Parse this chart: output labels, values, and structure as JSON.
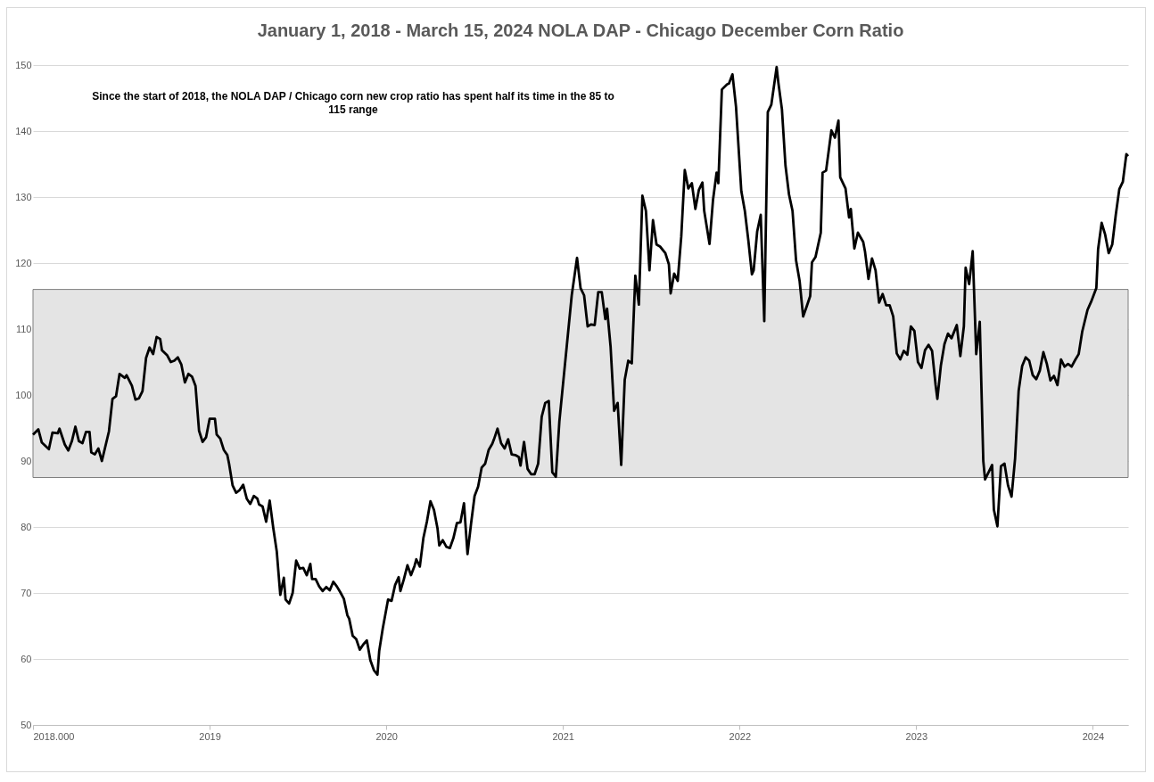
{
  "chart_data": {
    "type": "line",
    "title": "January 1, 2018 - March 15, 2024 NOLA DAP - Chicago December Corn Ratio",
    "annotations": [
      "Since the start of 2018, the NOLA DAP / Chicago corn new crop ratio has spent half its time in the 85 to 115 range"
    ],
    "x": [
      2018.0,
      2018.03,
      2018.05,
      2018.09,
      2018.11,
      2018.14,
      2018.15,
      2018.18,
      2018.2,
      2018.22,
      2018.24,
      2018.26,
      2018.28,
      2018.3,
      2018.32,
      2018.33,
      2018.35,
      2018.37,
      2018.39,
      2018.43,
      2018.45,
      2018.47,
      2018.49,
      2018.52,
      2018.53,
      2018.56,
      2018.58,
      2018.6,
      2018.62,
      2018.64,
      2018.66,
      2018.68,
      2018.7,
      2018.72,
      2018.73,
      2018.76,
      2018.78,
      2018.8,
      2018.82,
      2018.84,
      2018.86,
      2018.88,
      2018.9,
      2018.92,
      2018.94,
      2018.96,
      2018.98,
      2019.0,
      2019.03,
      2019.04,
      2019.06,
      2019.08,
      2019.1,
      2019.11,
      2019.13,
      2019.15,
      2019.17,
      2019.19,
      2019.21,
      2019.23,
      2019.25,
      2019.27,
      2019.28,
      2019.3,
      2019.32,
      2019.34,
      2019.36,
      2019.38,
      2019.4,
      2019.42,
      2019.43,
      2019.45,
      2019.47,
      2019.49,
      2019.51,
      2019.53,
      2019.55,
      2019.57,
      2019.58,
      2019.6,
      2019.62,
      2019.64,
      2019.66,
      2019.68,
      2019.7,
      2019.72,
      2019.74,
      2019.76,
      2019.78,
      2019.79,
      2019.81,
      2019.83,
      2019.85,
      2019.87,
      2019.89,
      2019.91,
      2019.93,
      2019.95,
      2019.96,
      2019.98,
      2020.01,
      2020.03,
      2020.05,
      2020.07,
      2020.08,
      2020.1,
      2020.12,
      2020.14,
      2020.16,
      2020.17,
      2020.19,
      2020.21,
      2020.23,
      2020.25,
      2020.27,
      2020.29,
      2020.3,
      2020.32,
      2020.34,
      2020.36,
      2020.38,
      2020.4,
      2020.42,
      2020.44,
      2020.46,
      2020.48,
      2020.5,
      2020.52,
      2020.54,
      2020.56,
      2020.58,
      2020.6,
      2020.61,
      2020.63,
      2020.65,
      2020.67,
      2020.69,
      2020.71,
      2020.73,
      2020.75,
      2020.76,
      2020.78,
      2020.8,
      2020.82,
      2020.84,
      2020.86,
      2020.88,
      2020.9,
      2020.92,
      2020.94,
      2020.96,
      2020.98,
      2021.05,
      2021.08,
      2021.1,
      2021.12,
      2021.14,
      2021.16,
      2021.18,
      2021.2,
      2021.22,
      2021.24,
      2021.25,
      2021.27,
      2021.29,
      2021.31,
      2021.33,
      2021.35,
      2021.37,
      2021.39,
      2021.41,
      2021.43,
      2021.45,
      2021.47,
      2021.49,
      2021.51,
      2021.53,
      2021.55,
      2021.58,
      2021.6,
      2021.61,
      2021.63,
      2021.65,
      2021.67,
      2021.69,
      2021.71,
      2021.73,
      2021.75,
      2021.77,
      2021.79,
      2021.8,
      2021.83,
      2021.85,
      2021.87,
      2021.88,
      2021.9,
      2021.93,
      2021.94,
      2021.96,
      2021.98,
      2022.01,
      2022.03,
      2022.05,
      2022.07,
      2022.08,
      2022.1,
      2022.12,
      2022.14,
      2022.16,
      2022.18,
      2022.21,
      2022.22,
      2022.24,
      2022.26,
      2022.28,
      2022.3,
      2022.32,
      2022.34,
      2022.36,
      2022.38,
      2022.4,
      2022.41,
      2022.43,
      2022.46,
      2022.47,
      2022.49,
      2022.52,
      2022.54,
      2022.56,
      2022.57,
      2022.6,
      2022.62,
      2022.63,
      2022.65,
      2022.67,
      2022.7,
      2022.71,
      2022.73,
      2022.75,
      2022.77,
      2022.79,
      2022.81,
      2022.83,
      2022.85,
      2022.87,
      2022.89,
      2022.91,
      2022.93,
      2022.95,
      2022.97,
      2022.99,
      2023.01,
      2023.03,
      2023.05,
      2023.07,
      2023.09,
      2023.11,
      2023.12,
      2023.14,
      2023.16,
      2023.18,
      2023.2,
      2023.23,
      2023.25,
      2023.27,
      2023.28,
      2023.3,
      2023.32,
      2023.34,
      2023.36,
      2023.38,
      2023.39,
      2023.41,
      2023.43,
      2023.44,
      2023.46,
      2023.48,
      2023.5,
      2023.52,
      2023.54,
      2023.56,
      2023.58,
      2023.6,
      2023.62,
      2023.64,
      2023.66,
      2023.68,
      2023.7,
      2023.72,
      2023.74,
      2023.76,
      2023.78,
      2023.8,
      2023.82,
      2023.84,
      2023.86,
      2023.88,
      2023.9,
      2023.92,
      2023.94,
      2023.97,
      2023.99,
      2024.02,
      2024.03,
      2024.05,
      2024.07,
      2024.09,
      2024.11,
      2024.13,
      2024.15,
      2024.17,
      2024.19,
      2024.2
    ],
    "series": [
      {
        "color": "#000000",
        "values": [
          94,
          94.8,
          92.8,
          91.8,
          94.3,
          94.2,
          94.9,
          92.5,
          91.6,
          93,
          95.2,
          93,
          92.7,
          94.4,
          94.4,
          91.3,
          91,
          91.9,
          90,
          94.5,
          99.4,
          99.8,
          103.2,
          102.6,
          103,
          101.4,
          99.3,
          99.5,
          100.6,
          105.6,
          107.2,
          106.2,
          108.8,
          108.5,
          106.8,
          106,
          105,
          105.2,
          105.7,
          104.6,
          101.9,
          103.2,
          102.8,
          101.4,
          94.6,
          92.9,
          93.6,
          96.4,
          96.4,
          94,
          93.4,
          91.7,
          90.9,
          89.6,
          86.3,
          85.2,
          85.6,
          86.4,
          84.3,
          83.5,
          84.7,
          84.3,
          83.4,
          83.1,
          80.8,
          84,
          79.9,
          76.3,
          69.7,
          72.3,
          69,
          68.4,
          70,
          74.9,
          73.7,
          73.8,
          72.7,
          74.4,
          72.1,
          72.1,
          71,
          70.3,
          70.9,
          70.4,
          71.7,
          71,
          70.1,
          69.1,
          66.6,
          66.1,
          63.5,
          63,
          61.4,
          62.2,
          62.8,
          59.8,
          58.3,
          57.6,
          61.2,
          64.6,
          69,
          68.8,
          71.2,
          72.4,
          70.3,
          72.1,
          74.2,
          72.7,
          74.1,
          75.1,
          74,
          78.3,
          80.8,
          83.9,
          82.6,
          79.8,
          77.2,
          78,
          77,
          76.8,
          78.3,
          80.6,
          80.7,
          83.6,
          75.9,
          80.5,
          84.7,
          86.1,
          89,
          89.6,
          91.7,
          92.6,
          93.3,
          94.9,
          92.7,
          91.9,
          93.3,
          91,
          90.9,
          90.6,
          89.3,
          92.9,
          88.8,
          88,
          88,
          89.6,
          96.7,
          98.8,
          99.1,
          88.3,
          87.6,
          96,
          115.1,
          120.8,
          116.2,
          115.1,
          110.4,
          110.7,
          110.6,
          115.6,
          115.6,
          111.5,
          113.1,
          107.3,
          97.6,
          98.8,
          89.4,
          102.3,
          105.2,
          104.8,
          118.1,
          113.7,
          130.2,
          127.9,
          118.9,
          126.5,
          122.8,
          122.5,
          121.5,
          119.8,
          115.4,
          118.4,
          117.3,
          124,
          134.1,
          131.3,
          132.1,
          128.2,
          131.1,
          132.2,
          127.9,
          122.9,
          129.6,
          133.7,
          132.1,
          146.3,
          147.1,
          147.2,
          148.6,
          143.7,
          130.9,
          127.9,
          123.4,
          118.3,
          118.9,
          124.8,
          127.3,
          111.2,
          142.9,
          144,
          149.7,
          147.3,
          143.3,
          134.8,
          130.4,
          127.9,
          120.4,
          117.3,
          111.9,
          113.4,
          115,
          120.1,
          120.9,
          124.6,
          133.7,
          134,
          140.1,
          139,
          141.6,
          133,
          131.3,
          126.9,
          128.2,
          122.2,
          124.6,
          123.2,
          121.8,
          117.6,
          120.7,
          118.9,
          114,
          115.3,
          113.6,
          113.6,
          111.9,
          106.3,
          105.4,
          106.7,
          106.1,
          110.4,
          109.7,
          105,
          104.1,
          106.8,
          107.6,
          106.7,
          101.5,
          99.4,
          104.5,
          107.7,
          109.3,
          108.6,
          110.6,
          105.9,
          110.4,
          119.3,
          116.8,
          121.8,
          106.2,
          111.1,
          90,
          87.2,
          88.3,
          89.4,
          82.6,
          80.1,
          89.2,
          89.6,
          86.3,
          84.6,
          90.4,
          100.6,
          104.4,
          105.7,
          105.2,
          103,
          102.4,
          103.7,
          106.5,
          104.7,
          102.2,
          102.9,
          101.5,
          105.4,
          104.3,
          104.7,
          104.3,
          105.3,
          106.2,
          109.6,
          112.9,
          114.1,
          116.2,
          122.1,
          126.1,
          124.3,
          121.5,
          122.8,
          127.3,
          131.2,
          132.3,
          136.5,
          136.2
        ]
      }
    ],
    "bands": [
      {
        "axis": "y",
        "from": 87.5,
        "to": 116,
        "color": "#e4e4e4"
      }
    ],
    "xlim": [
      2018,
      2024.2
    ],
    "xticks": [
      {
        "value": 2018,
        "label": "2018.000"
      },
      2019,
      2020,
      2021,
      2022,
      2023,
      2024
    ],
    "ylim": [
      50,
      150
    ],
    "yticks": [
      50,
      60,
      70,
      80,
      90,
      100,
      110,
      120,
      130,
      140,
      150
    ],
    "grid": "y"
  }
}
